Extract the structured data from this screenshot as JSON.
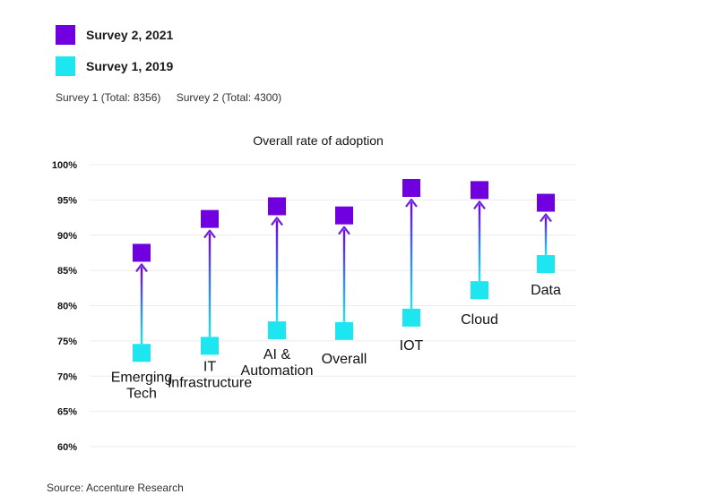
{
  "legend": [
    {
      "label": "Survey 2, 2021",
      "color": "#7000e0"
    },
    {
      "label": "Survey 1, 2019",
      "color": "#1ee6f0"
    }
  ],
  "totals": {
    "survey1": "Survey 1 (Total: 8356)",
    "survey2": "Survey 2 (Total: 4300)"
  },
  "source": "Source: Accenture Research",
  "chart_data": {
    "type": "dumbbell",
    "title": "Overall rate of adoption",
    "categories": [
      [
        "Emerging",
        "Tech"
      ],
      [
        "IT",
        "Infrastructure"
      ],
      [
        "AI &",
        "Automation"
      ],
      [
        "Overall"
      ],
      [
        "IOT"
      ],
      [
        "Cloud"
      ],
      [
        "Data"
      ]
    ],
    "series": [
      {
        "name": "Survey 1, 2019",
        "values": [
          73.3,
          74.3,
          76.5,
          76.4,
          78.3,
          82.2,
          85.9
        ]
      },
      {
        "name": "Survey 2, 2021",
        "values": [
          87.5,
          92.3,
          94.1,
          92.8,
          96.7,
          96.4,
          94.6
        ]
      }
    ],
    "yticks": [
      "100%",
      "95%",
      "90%",
      "85%",
      "80%",
      "75%",
      "70%",
      "65%",
      "60%"
    ],
    "ylim": [
      60,
      100
    ],
    "grid": true,
    "legend_position": "top-left"
  }
}
